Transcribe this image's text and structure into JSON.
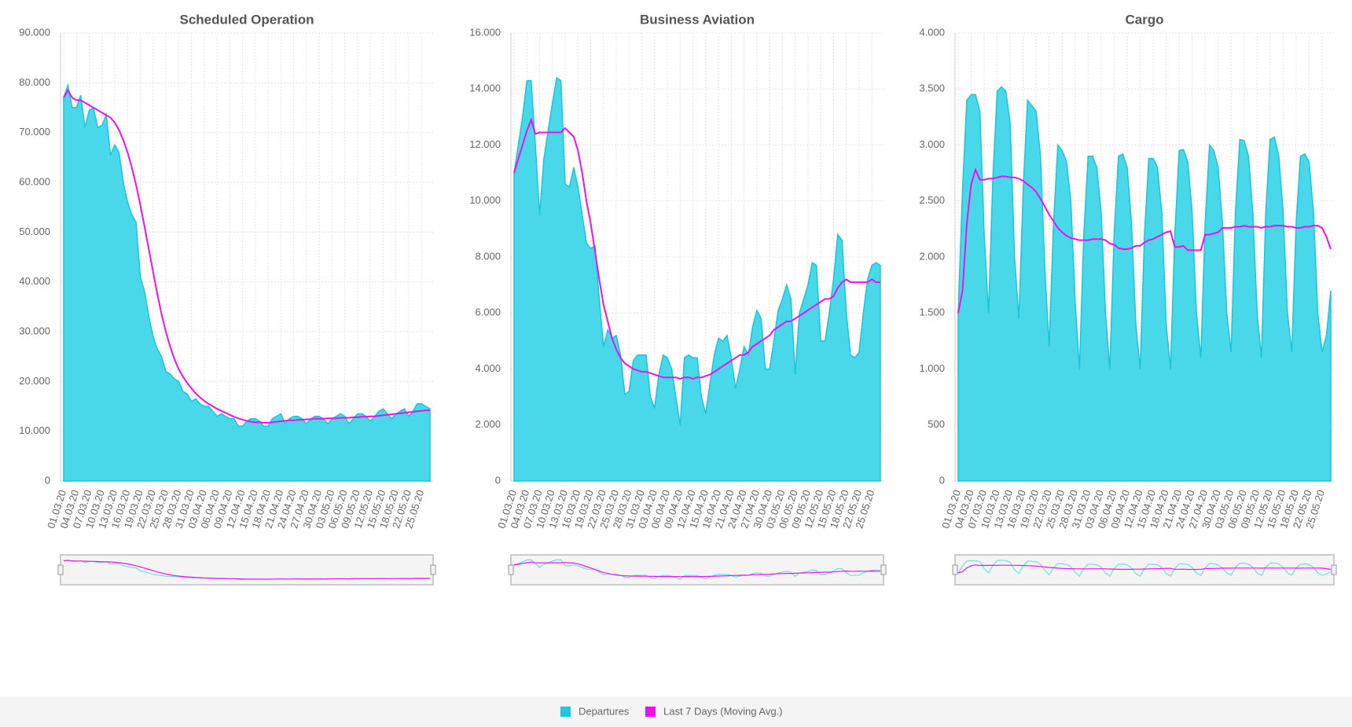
{
  "legend": [
    {
      "name": "Departures",
      "color": "#1cc9df"
    },
    {
      "name": "Last 7 Days (Moving Avg.)",
      "color": "#ee11ee"
    }
  ],
  "chart_data": [
    {
      "type": "area",
      "title": "Scheduled Operation",
      "categories": [
        "01.03.20",
        null,
        null,
        "04.03.20",
        null,
        null,
        "07.03.20",
        null,
        null,
        "10.03.20",
        null,
        null,
        "13.03.20",
        null,
        null,
        "16.03.20",
        null,
        null,
        "19.03.20",
        null,
        null,
        "22.03.20",
        null,
        null,
        "25.03.20",
        null,
        null,
        "28.03.20",
        null,
        null,
        "31.03.20",
        null,
        null,
        "03.04.20",
        null,
        null,
        "06.04.20",
        null,
        null,
        "09.04.20",
        null,
        null,
        "12.04.20",
        null,
        null,
        "15.04.20",
        null,
        null,
        "18.04.20",
        null,
        null,
        "21.04.20",
        null,
        null,
        "24.04.20",
        null,
        null,
        "27.04.20",
        null,
        null,
        "30.04.20",
        null,
        null,
        "03.05.20",
        null,
        null,
        "06.05.20",
        null,
        null,
        "09.05.20",
        null,
        null,
        "12.05.20",
        null,
        null,
        "15.05.20",
        null,
        null,
        "18.05.20",
        null,
        null,
        "22.05.20",
        null,
        null,
        "25.05.20",
        null,
        null
      ],
      "series": [
        {
          "kind": "area",
          "color": "#3fd6e8",
          "values": [
            77000,
            79500,
            75000,
            75000,
            77500,
            71000,
            74500,
            75000,
            71000,
            71500,
            73500,
            65500,
            67500,
            66000,
            60000,
            56000,
            53500,
            52000,
            41000,
            38000,
            33000,
            29000,
            26500,
            25000,
            22000,
            21500,
            20500,
            20000,
            18000,
            17500,
            16000,
            16500,
            15500,
            15000,
            15000,
            14000,
            13000,
            13500,
            13000,
            12500,
            12500,
            11000,
            11000,
            12000,
            12500,
            12500,
            12000,
            11000,
            11000,
            12500,
            13000,
            13500,
            11500,
            12500,
            13000,
            13000,
            12500,
            11500,
            12500,
            13000,
            13000,
            12500,
            11500,
            12500,
            13000,
            13500,
            13000,
            11500,
            12500,
            13500,
            13500,
            13000,
            12000,
            13000,
            14000,
            14500,
            13500,
            12500,
            13500,
            14000,
            14500,
            13000,
            14000,
            15500,
            15500,
            15000,
            14500
          ]
        },
        {
          "kind": "line",
          "color": "#ee11ee",
          "values": [
            77000,
            78500,
            77000,
            76500,
            76500,
            76000,
            75500,
            75000,
            74500,
            74000,
            73500,
            73000,
            72000,
            70500,
            68500,
            66000,
            63000,
            59500,
            55500,
            51000,
            46500,
            42000,
            37500,
            33500,
            30000,
            27000,
            24500,
            22500,
            21000,
            19700,
            18600,
            17600,
            16800,
            16100,
            15500,
            15000,
            14500,
            14100,
            13700,
            13300,
            12900,
            12600,
            12300,
            12100,
            11900,
            11800,
            11800,
            11700,
            11700,
            11800,
            11900,
            12000,
            12100,
            12200,
            12200,
            12300,
            12300,
            12400,
            12400,
            12500,
            12500,
            12500,
            12600,
            12600,
            12600,
            12700,
            12700,
            12700,
            12800,
            12800,
            12900,
            12900,
            13000,
            13000,
            13100,
            13200,
            13300,
            13400,
            13500,
            13600,
            13700,
            13800,
            13900,
            14000,
            14100,
            14200,
            14200
          ]
        }
      ],
      "ylim": [
        0,
        90000
      ],
      "yticks": [
        0,
        {
          "value": 10000,
          "label": "10.000"
        },
        {
          "value": 20000,
          "label": "20.000"
        },
        {
          "value": 30000,
          "label": "30.000"
        },
        {
          "value": 40000,
          "label": "40.000"
        },
        {
          "value": 50000,
          "label": "50.000"
        },
        {
          "value": 60000,
          "label": "60.000"
        },
        {
          "value": 70000,
          "label": "70.000"
        },
        {
          "value": 80000,
          "label": "80.000"
        },
        {
          "value": 90000,
          "label": "90.000"
        }
      ],
      "grid": true
    },
    {
      "type": "area",
      "title": "Business Aviation",
      "categories": [
        "01.03.20",
        null,
        null,
        "04.03.20",
        null,
        null,
        "07.03.20",
        null,
        null,
        "10.03.20",
        null,
        null,
        "13.03.20",
        null,
        null,
        "16.03.20",
        null,
        null,
        "19.03.20",
        null,
        null,
        "22.03.20",
        null,
        null,
        "25.03.20",
        null,
        null,
        "28.03.20",
        null,
        null,
        "31.03.20",
        null,
        null,
        "03.04.20",
        null,
        null,
        "06.04.20",
        null,
        null,
        "09.04.20",
        null,
        null,
        "12.04.20",
        null,
        null,
        "15.04.20",
        null,
        null,
        "18.04.20",
        null,
        null,
        "21.04.20",
        null,
        null,
        "24.04.20",
        null,
        null,
        "27.04.20",
        null,
        null,
        "30.04.20",
        null,
        null,
        "03.05.20",
        null,
        null,
        "06.05.20",
        null,
        null,
        "09.05.20",
        null,
        null,
        "12.05.20",
        null,
        null,
        "15.05.20",
        null,
        null,
        "18.05.20",
        null,
        null,
        "22.05.20",
        null,
        null,
        "25.05.20",
        null,
        null
      ],
      "series": [
        {
          "kind": "area",
          "color": "#3fd6e8",
          "values": [
            11000,
            12000,
            13000,
            14300,
            14300,
            12000,
            9500,
            11500,
            12500,
            13500,
            14400,
            14300,
            10600,
            10500,
            11200,
            10500,
            9500,
            8500,
            8300,
            8400,
            6500,
            4800,
            5400,
            5100,
            5200,
            4500,
            3100,
            3200,
            4300,
            4500,
            4500,
            4500,
            3000,
            2600,
            3800,
            4500,
            4400,
            4000,
            3000,
            2000,
            4400,
            4500,
            4400,
            4400,
            3000,
            2400,
            3500,
            4500,
            5100,
            5000,
            5200,
            4400,
            3300,
            4000,
            4800,
            4500,
            5500,
            6100,
            5800,
            4000,
            4000,
            5000,
            6100,
            6500,
            7000,
            6500,
            3800,
            6000,
            6500,
            7000,
            7800,
            7700,
            5000,
            5000,
            6000,
            7200,
            8800,
            8600,
            6000,
            4500,
            4400,
            4600,
            6000,
            7200,
            7700,
            7800,
            7700
          ]
        },
        {
          "kind": "line",
          "color": "#ee11ee",
          "values": [
            11000,
            11500,
            12000,
            12500,
            12900,
            12400,
            12450,
            12450,
            12450,
            12450,
            12450,
            12450,
            12600,
            12450,
            12300,
            11800,
            11000,
            10000,
            9200,
            8200,
            7200,
            6300,
            5700,
            5100,
            4700,
            4400,
            4200,
            4100,
            4000,
            3950,
            3900,
            3900,
            3850,
            3800,
            3750,
            3700,
            3700,
            3700,
            3700,
            3650,
            3700,
            3700,
            3650,
            3700,
            3700,
            3750,
            3800,
            3900,
            4000,
            4100,
            4200,
            4300,
            4400,
            4500,
            4500,
            4600,
            4800,
            4900,
            5000,
            5100,
            5200,
            5400,
            5500,
            5600,
            5700,
            5700,
            5800,
            5900,
            6000,
            6100,
            6200,
            6300,
            6400,
            6500,
            6500,
            6600,
            6900,
            7100,
            7200,
            7100,
            7100,
            7100,
            7100,
            7100,
            7200,
            7100,
            7100
          ]
        }
      ],
      "ylim": [
        0,
        16000
      ],
      "yticks": [
        0,
        {
          "value": 2000,
          "label": "2.000"
        },
        {
          "value": 4000,
          "label": "4.000"
        },
        {
          "value": 6000,
          "label": "6.000"
        },
        {
          "value": 8000,
          "label": "8.000"
        },
        {
          "value": 10000,
          "label": "10.000"
        },
        {
          "value": 12000,
          "label": "12.000"
        },
        {
          "value": 14000,
          "label": "14.000"
        },
        {
          "value": 16000,
          "label": "16.000"
        }
      ],
      "grid": true
    },
    {
      "type": "area",
      "title": "Cargo",
      "categories": [
        "01.03.20",
        null,
        null,
        "04.03.20",
        null,
        null,
        "07.03.20",
        null,
        null,
        "10.03.20",
        null,
        null,
        "13.03.20",
        null,
        null,
        "16.03.20",
        null,
        null,
        "19.03.20",
        null,
        null,
        "22.03.20",
        null,
        null,
        "25.03.20",
        null,
        null,
        "28.03.20",
        null,
        null,
        "31.03.20",
        null,
        null,
        "03.04.20",
        null,
        null,
        "06.04.20",
        null,
        null,
        "09.04.20",
        null,
        null,
        "12.04.20",
        null,
        null,
        "15.04.20",
        null,
        null,
        "18.04.20",
        null,
        null,
        "21.04.20",
        null,
        null,
        "24.04.20",
        null,
        null,
        "27.04.20",
        null,
        null,
        "30.04.20",
        null,
        null,
        "03.05.20",
        null,
        null,
        "06.05.20",
        null,
        null,
        "09.05.20",
        null,
        null,
        "12.05.20",
        null,
        null,
        "15.05.20",
        null,
        null,
        "18.05.20",
        null,
        null,
        "22.05.20",
        null,
        null,
        "25.05.20",
        null,
        null
      ],
      "series": [
        {
          "kind": "area",
          "color": "#3fd6e8",
          "values": [
            1500,
            2600,
            3400,
            3450,
            3450,
            3300,
            2200,
            1500,
            2700,
            3480,
            3520,
            3480,
            3200,
            2000,
            1450,
            2600,
            3400,
            3350,
            3300,
            2900,
            1900,
            1200,
            2300,
            3000,
            2950,
            2850,
            2500,
            1600,
            1000,
            2200,
            2900,
            2900,
            2800,
            2400,
            1500,
            1000,
            2200,
            2900,
            2920,
            2800,
            2300,
            1400,
            1000,
            2200,
            2880,
            2880,
            2800,
            2400,
            1400,
            1000,
            2200,
            2950,
            2960,
            2850,
            2400,
            1500,
            1100,
            2300,
            3000,
            2950,
            2800,
            2300,
            1500,
            1150,
            2400,
            3050,
            3040,
            2900,
            2400,
            1500,
            1100,
            2400,
            3050,
            3070,
            2900,
            2400,
            1500,
            1150,
            2300,
            2900,
            2920,
            2850,
            2400,
            1500,
            1150,
            1300,
            1700
          ]
        },
        {
          "kind": "line",
          "color": "#ee11ee",
          "values": [
            1500,
            1700,
            2300,
            2650,
            2780,
            2690,
            2690,
            2700,
            2700,
            2710,
            2720,
            2720,
            2710,
            2710,
            2700,
            2680,
            2650,
            2620,
            2580,
            2520,
            2450,
            2380,
            2320,
            2260,
            2220,
            2190,
            2170,
            2160,
            2150,
            2150,
            2150,
            2160,
            2160,
            2160,
            2150,
            2120,
            2110,
            2080,
            2070,
            2070,
            2080,
            2100,
            2100,
            2130,
            2150,
            2160,
            2180,
            2200,
            2220,
            2230,
            2090,
            2090,
            2100,
            2060,
            2060,
            2060,
            2060,
            2200,
            2200,
            2210,
            2220,
            2260,
            2260,
            2260,
            2270,
            2270,
            2280,
            2270,
            2270,
            2270,
            2260,
            2270,
            2270,
            2280,
            2280,
            2280,
            2270,
            2270,
            2260,
            2260,
            2270,
            2270,
            2280,
            2280,
            2260,
            2180,
            2070
          ]
        }
      ],
      "ylim": [
        0,
        4000
      ],
      "yticks": [
        0,
        500,
        {
          "value": 1000,
          "label": "1.000"
        },
        {
          "value": 1500,
          "label": "1.500"
        },
        {
          "value": 2000,
          "label": "2.000"
        },
        {
          "value": 2500,
          "label": "2.500"
        },
        {
          "value": 3000,
          "label": "3.000"
        },
        {
          "value": 3500,
          "label": "3.500"
        },
        {
          "value": 4000,
          "label": "4.000"
        }
      ],
      "grid": true
    }
  ]
}
